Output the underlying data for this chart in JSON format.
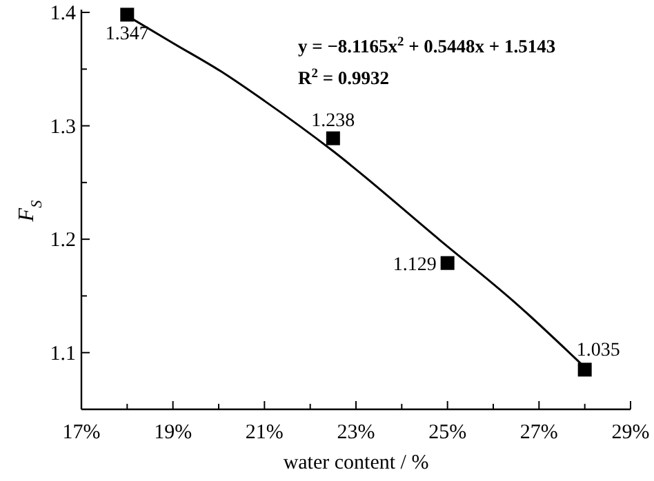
{
  "chart_data": {
    "type": "scatter",
    "xlabel": "water content / %",
    "ylabel": "F$_{S}$",
    "xlim": [
      17,
      29
    ],
    "ylim": [
      1.05,
      1.4
    ],
    "xticks": [
      {
        "value": 17,
        "label": "17%"
      },
      {
        "value": 18,
        "label": null
      },
      {
        "value": 19,
        "label": "19%"
      },
      {
        "value": 20,
        "label": null
      },
      {
        "value": 21,
        "label": "21%"
      },
      {
        "value": 22,
        "label": null
      },
      {
        "value": 23,
        "label": "23%"
      },
      {
        "value": 24,
        "label": null
      },
      {
        "value": 25,
        "label": "25%"
      },
      {
        "value": 26,
        "label": null
      },
      {
        "value": 27,
        "label": "27%"
      },
      {
        "value": 28,
        "label": null
      },
      {
        "value": 29,
        "label": "29%"
      }
    ],
    "yticks": [
      1.1,
      {
        "value": 1.15,
        "label": null
      },
      1.2,
      {
        "value": 1.25,
        "label": null
      },
      1.3,
      {
        "value": 1.35,
        "label": null
      },
      1.4
    ],
    "grid": false,
    "series": [
      {
        "type": "line",
        "color": "#000000",
        "marker": "none",
        "line_style": "solid",
        "x": [
          18,
          19,
          20.05,
          21,
          22.49,
          24.84,
          26.48,
          28
        ],
        "values": [
          1.397,
          1.373,
          1.348,
          1.322,
          1.278,
          1.199,
          1.144,
          1.087
        ]
      },
      {
        "color": "#000000",
        "marker": "square",
        "x": [
          18,
          22.5,
          25,
          28
        ],
        "values": [
          1.398,
          1.289,
          1.179,
          1.085
        ]
      }
    ],
    "annotations": [
      "y = −8.1165x$^{2}$ + 0.5448x + 1.5143",
      "R$^{2}$ = 0.9932",
      {
        "text": "1.347",
        "x": 18,
        "y": 1.398
      },
      {
        "text": "1.238",
        "x": 22.5,
        "y": 1.289
      },
      {
        "text": "1.129",
        "x": 25,
        "y": 1.179
      },
      {
        "text": "1.035",
        "x": 28,
        "y": 1.085
      }
    ]
  }
}
